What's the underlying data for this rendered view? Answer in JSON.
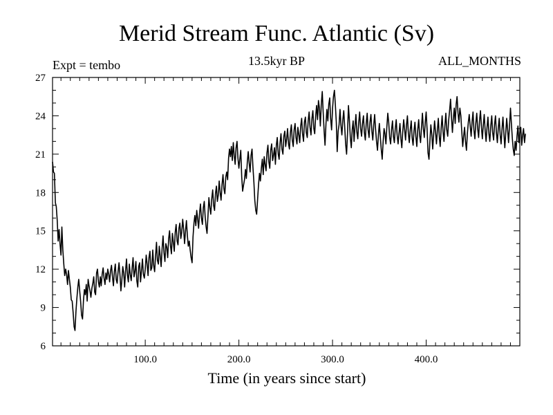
{
  "chart_data": {
    "type": "line",
    "title": "Merid Stream Func. Atlantic (Sv)",
    "subtitle": "13.5kyr BP",
    "left_label": "Expt = tembo",
    "right_label": "ALL_MONTHS",
    "xlabel": "Time (in years since start)",
    "ylabel": "",
    "xlim": [
      1,
      500
    ],
    "ylim": [
      6,
      27
    ],
    "xticks": [
      100,
      200,
      300,
      400
    ],
    "xtick_labels": [
      "100.0",
      "200.0",
      "300.0",
      "400.0"
    ],
    "yticks": [
      6,
      9,
      12,
      15,
      18,
      21,
      24,
      27
    ],
    "ytick_labels": [
      "6",
      "9",
      "12",
      "15",
      "18",
      "21",
      "24",
      "27"
    ],
    "series": [
      {
        "name": "Merid Stream Func. Atlantic",
        "color": "#000000",
        "x_start": 1,
        "x_step": 1,
        "values": [
          20.4,
          19.6,
          19.5,
          17.2,
          16.9,
          15.8,
          14.2,
          15.1,
          14.0,
          13.1,
          15.3,
          13.5,
          12.4,
          11.5,
          12.0,
          11.6,
          10.8,
          11.9,
          11.2,
          10.6,
          9.6,
          9.5,
          8.6,
          7.5,
          7.2,
          8.7,
          9.7,
          10.6,
          11.2,
          10.3,
          9.5,
          8.4,
          8.1,
          9.5,
          10.4,
          10.0,
          10.8,
          9.5,
          11.2,
          10.7,
          10.3,
          9.8,
          10.5,
          10.9,
          11.4,
          10.2,
          10.0,
          11.7,
          12.0,
          11.0,
          10.6,
          11.4,
          10.7,
          11.6,
          12.1,
          11.3,
          10.8,
          11.7,
          11.2,
          12.0,
          11.6,
          11.0,
          11.9,
          12.3,
          11.4,
          10.7,
          11.8,
          12.4,
          11.2,
          10.9,
          11.8,
          12.5,
          11.6,
          10.3,
          11.1,
          12.2,
          11.7,
          10.6,
          11.9,
          12.8,
          11.5,
          11.0,
          12.4,
          11.6,
          11.1,
          12.1,
          12.9,
          11.4,
          11.8,
          12.6,
          11.1,
          10.6,
          12.2,
          12.5,
          11.0,
          11.9,
          12.8,
          11.6,
          11.3,
          12.0,
          13.1,
          12.4,
          11.5,
          12.9,
          13.4,
          11.9,
          12.1,
          13.5,
          12.3,
          11.8,
          13.0,
          14.1,
          12.7,
          12.4,
          13.8,
          13.0,
          12.2,
          13.6,
          14.6,
          13.3,
          12.6,
          14.0,
          13.7,
          12.9,
          14.4,
          15.0,
          13.8,
          13.2,
          14.8,
          14.1,
          13.4,
          14.9,
          15.5,
          14.2,
          13.9,
          15.2,
          15.6,
          14.4,
          14.9,
          15.9,
          15.1,
          14.0,
          15.0,
          15.8,
          14.6,
          13.8,
          14.2,
          13.5,
          12.9,
          12.5,
          14.5,
          15.6,
          16.2,
          15.4,
          16.6,
          15.9,
          15.2,
          16.4,
          17.1,
          16.0,
          15.5,
          16.8,
          17.3,
          16.1,
          15.3,
          14.8,
          16.2,
          17.6,
          16.8,
          16.3,
          17.5,
          18.2,
          17.0,
          16.6,
          17.9,
          18.5,
          17.3,
          17.8,
          18.9,
          18.0,
          17.4,
          18.6,
          19.4,
          18.3,
          17.9,
          19.2,
          19.6,
          19.0,
          20.7,
          21.4,
          20.8,
          21.6,
          20.5,
          21.9,
          20.9,
          20.2,
          21.5,
          22.0,
          20.7,
          19.9,
          20.6,
          21.3,
          19.2,
          18.1,
          18.6,
          19.0,
          19.8,
          19.1,
          20.4,
          21.2,
          20.3,
          19.6,
          20.9,
          21.4,
          20.0,
          18.8,
          17.4,
          16.6,
          16.3,
          17.5,
          18.6,
          19.5,
          18.9,
          19.9,
          20.6,
          19.4,
          20.8,
          20.2,
          19.7,
          21.1,
          21.7,
          20.4,
          19.9,
          21.3,
          21.8,
          20.5,
          20.9,
          21.5,
          20.2,
          21.7,
          22.3,
          21.0,
          20.6,
          21.9,
          22.6,
          21.4,
          21.0,
          22.4,
          22.8,
          21.6,
          22.2,
          23.0,
          21.8,
          21.4,
          22.7,
          23.3,
          22.1,
          21.6,
          22.9,
          23.4,
          22.3,
          21.8,
          23.1,
          22.5,
          21.9,
          23.2,
          23.8,
          22.6,
          22.0,
          23.5,
          23.9,
          22.7,
          22.3,
          23.6,
          24.3,
          23.1,
          22.5,
          23.8,
          24.4,
          23.0,
          22.6,
          24.0,
          24.8,
          23.7,
          25.2,
          24.6,
          23.2,
          24.9,
          25.9,
          24.3,
          22.8,
          21.7,
          23.4,
          24.5,
          23.6,
          24.9,
          25.4,
          23.8,
          22.9,
          24.6,
          25.5,
          26.0,
          24.9,
          23.5,
          21.2,
          22.8,
          23.3,
          24.5,
          23.2,
          22.5,
          23.7,
          24.4,
          23.1,
          21.8,
          21.0,
          22.6,
          24.8,
          23.7,
          22.3,
          21.5,
          22.9,
          23.6,
          22.0,
          23.2,
          24.1,
          22.7,
          22.2,
          23.5,
          24.3,
          23.0,
          22.4,
          23.4,
          24.0,
          22.7,
          22.1,
          23.4,
          24.2,
          22.9,
          22.3,
          23.5,
          24.1,
          22.8,
          22.1,
          23.3,
          24.1,
          22.9,
          22.0,
          21.3,
          22.5,
          23.4,
          22.4,
          21.4,
          20.6,
          21.9,
          23.0,
          22.6,
          21.8,
          23.1,
          24.2,
          23.5,
          22.3,
          21.8,
          22.9,
          23.6,
          22.4,
          21.9,
          23.0,
          23.7,
          22.5,
          21.8,
          22.6,
          23.4,
          22.2,
          21.5,
          22.8,
          23.7,
          22.9,
          22.1,
          23.3,
          24.0,
          22.6,
          21.9,
          22.9,
          23.6,
          22.3,
          21.7,
          22.8,
          23.5,
          22.4,
          21.6,
          22.9,
          23.7,
          22.5,
          21.9,
          23.1,
          24.2,
          23.0,
          22.3,
          23.5,
          24.3,
          22.9,
          21.1,
          20.6,
          22.0,
          23.3,
          22.5,
          21.4,
          22.6,
          23.6,
          22.7,
          21.8,
          22.9,
          23.8,
          22.4,
          21.6,
          23.0,
          24.0,
          22.8,
          22.0,
          23.2,
          24.2,
          22.9,
          22.4,
          23.6,
          24.4,
          25.3,
          23.9,
          22.7,
          23.8,
          24.6,
          23.4,
          24.9,
          25.5,
          24.2,
          23.5,
          24.6,
          24.0,
          22.8,
          21.6,
          22.4,
          23.1,
          22.0,
          21.3,
          22.6,
          23.5,
          24.1,
          23.2,
          22.4,
          23.5,
          24.3,
          22.9,
          22.2,
          23.4,
          24.2,
          23.0,
          22.3,
          23.6,
          24.4,
          23.1,
          22.2,
          23.3,
          24.1,
          22.8,
          22.0,
          23.1,
          23.9,
          22.6,
          22.0,
          23.2,
          24.0,
          22.7,
          22.1,
          23.3,
          24.0,
          22.7,
          21.9,
          23.0,
          23.8,
          22.5,
          21.8,
          23.0,
          23.9,
          22.6,
          21.5,
          22.7,
          23.8,
          22.9,
          21.9,
          23.2,
          24.6,
          23.4,
          22.2,
          21.4,
          20.9,
          22.0,
          21.3,
          22.4,
          23.2,
          21.9,
          22.7,
          23.1,
          21.7,
          22.5,
          23.0,
          21.9,
          22.6
        ]
      }
    ]
  }
}
